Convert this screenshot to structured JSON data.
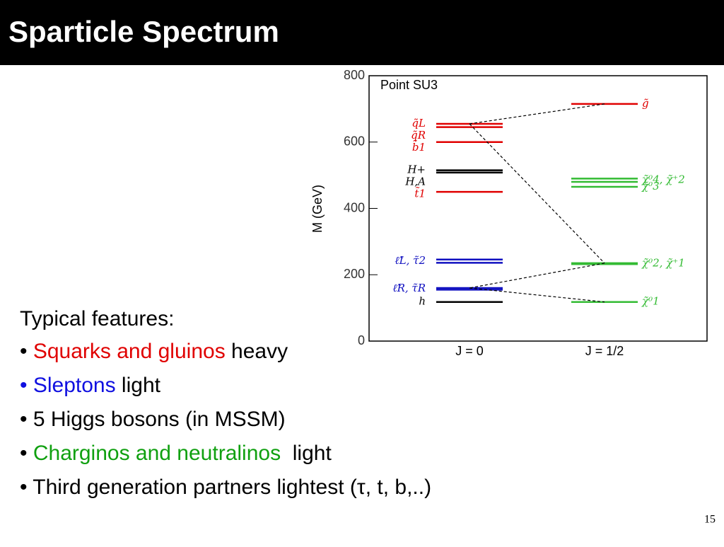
{
  "slide": {
    "title": "Sparticle Spectrum",
    "intro": "Typical features:",
    "bullets": [
      [
        {
          "text": "• ",
          "color": "#000000"
        },
        {
          "text": "Squarks and gluinos",
          "color": "#e00000"
        },
        {
          "text": " heavy",
          "color": "#000000"
        }
      ],
      [
        {
          "text": "• Sleptons",
          "color": "#1010e0"
        },
        {
          "text": " light",
          "color": "#000000"
        }
      ],
      [
        {
          "text": "• 5 Higgs bosons (in MSSM)",
          "color": "#000000"
        }
      ],
      [
        {
          "text": "• ",
          "color": "#000000"
        },
        {
          "text": "Charginos and neutralinos",
          "color": "#10a010"
        },
        {
          "text": "  light",
          "color": "#000000"
        }
      ],
      [
        {
          "text": "• Third generation partners lightest (τ, t, b,..)",
          "color": "#000000"
        }
      ]
    ],
    "page_number": "15"
  },
  "chart_data": {
    "type": "level",
    "title": "Point SU3",
    "y_label": "M (GeV)",
    "ylim": [
      0,
      800
    ],
    "yticks": [
      0,
      200,
      400,
      600,
      800
    ],
    "categories": [
      "J = 0",
      "J = 1/2"
    ],
    "columns": [
      [
        {
          "name": "q̃L",
          "color": "#e00000",
          "values": [
            655
          ]
        },
        {
          "name": "q̃R",
          "color": "#e00000",
          "values": [
            645
          ]
        },
        {
          "name": "b̃1",
          "color": "#e00000",
          "values": [
            600
          ]
        },
        {
          "name": "H+",
          "color": "#000000",
          "values": [
            515
          ]
        },
        {
          "name": "H,A",
          "color": "#000000",
          "values": [
            508
          ]
        },
        {
          "name": "t̃1",
          "color": "#e00000",
          "values": [
            450
          ]
        },
        {
          "name": "ℓ̃L, τ̃2",
          "color": "#1010c0",
          "values": [
            246,
            236
          ]
        },
        {
          "name": "ℓ̃R, τ̃R",
          "color": "#1010c0",
          "values": [
            160,
            155
          ]
        },
        {
          "name": "h",
          "color": "#000000",
          "values": [
            118
          ]
        }
      ],
      [
        {
          "name": "g̃",
          "color": "#e00000",
          "values": [
            715
          ]
        },
        {
          "name": "χ̃⁰4, χ̃⁺2",
          "color": "#33bb33",
          "values": [
            490,
            480
          ]
        },
        {
          "name": "χ̃⁰3",
          "color": "#33bb33",
          "values": [
            465
          ]
        },
        {
          "name": "χ̃⁰2, χ̃⁺1",
          "color": "#33bb33",
          "values": [
            235,
            232
          ]
        },
        {
          "name": "χ̃⁰1",
          "color": "#33bb33",
          "values": [
            118
          ]
        }
      ]
    ]
  }
}
